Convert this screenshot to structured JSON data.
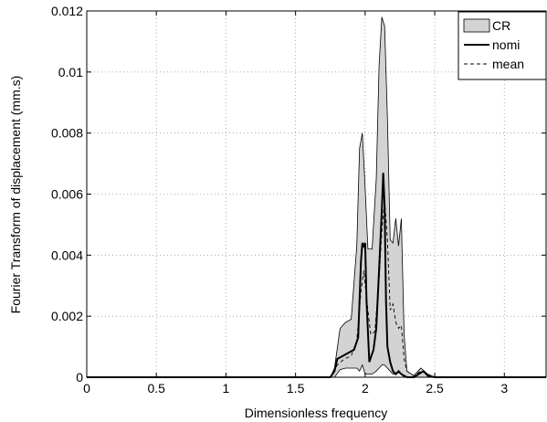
{
  "chart_data": {
    "type": "area",
    "title": "",
    "xlabel": "Dimensionless frequency",
    "ylabel": "Fourier Transform of displacement (mm.s)",
    "xlim": [
      0,
      3.3
    ],
    "ylim": [
      0,
      0.012
    ],
    "grid": true,
    "legend_position": "top-right",
    "x_ticks": [
      0,
      0.5,
      1,
      1.5,
      2,
      2.5,
      3
    ],
    "x_tick_labels": [
      "0",
      "0.5",
      "1",
      "1.5",
      "2",
      "2.5",
      "3"
    ],
    "y_ticks": [
      0,
      0.002,
      0.004,
      0.006,
      0.008,
      0.01,
      0.012
    ],
    "y_tick_labels": [
      "0",
      "0.002",
      "0.004",
      "0.006",
      "0.008",
      "0.01",
      "0.012"
    ],
    "colors": {
      "band_fill": "#d3d3d3",
      "line": "#000000",
      "grid": "#9a9a9a"
    },
    "series": [
      {
        "name": "CR",
        "kind": "band",
        "x": [
          0,
          1.75,
          1.78,
          1.82,
          1.86,
          1.9,
          1.94,
          1.96,
          1.98,
          2.0,
          2.02,
          2.05,
          2.08,
          2.1,
          2.12,
          2.14,
          2.16,
          2.18,
          2.2,
          2.22,
          2.24,
          2.26,
          2.28,
          2.3,
          2.35,
          2.4,
          2.45,
          2.5,
          3.3
        ],
        "upper": [
          0,
          0,
          0.0003,
          0.0016,
          0.0018,
          0.0019,
          0.0043,
          0.0075,
          0.008,
          0.0062,
          0.0042,
          0.0042,
          0.0065,
          0.0102,
          0.0118,
          0.0115,
          0.0085,
          0.0045,
          0.0044,
          0.0052,
          0.0043,
          0.0052,
          0.0014,
          0.0002,
          5e-05,
          0.0003,
          0.0001,
          0,
          0
        ],
        "lower": [
          0,
          0,
          0,
          0.00025,
          0.0003,
          0.0003,
          0.0003,
          0.0002,
          0.0004,
          0.0001,
          0.0001,
          0.0001,
          0.0002,
          0.0003,
          0.0004,
          0.0004,
          0.0003,
          0.0002,
          0.0001,
          0.0001,
          0.00015,
          0.0001,
          0,
          0,
          0,
          0,
          0,
          0,
          0
        ]
      },
      {
        "name": "nomi",
        "kind": "line",
        "style": "solid",
        "x": [
          0,
          1.75,
          1.78,
          1.8,
          1.84,
          1.88,
          1.92,
          1.95,
          1.97,
          1.98,
          1.99,
          2.0,
          2.01,
          2.03,
          2.06,
          2.08,
          2.1,
          2.12,
          2.13,
          2.14,
          2.15,
          2.16,
          2.18,
          2.2,
          2.22,
          2.24,
          2.26,
          2.28,
          2.3,
          2.35,
          2.4,
          2.42,
          2.45,
          2.5,
          3.3
        ],
        "y": [
          0,
          0,
          0.0002,
          0.0006,
          0.0007,
          0.0008,
          0.0009,
          0.0013,
          0.0038,
          0.0044,
          0.0043,
          0.0044,
          0.0025,
          0.0005,
          0.0009,
          0.0016,
          0.0035,
          0.0055,
          0.0067,
          0.0056,
          0.0025,
          0.001,
          0.0005,
          0.0002,
          0.0001,
          0.0002,
          0.0001,
          5e-05,
          0,
          0,
          0.00015,
          0.0002,
          5e-05,
          0,
          0
        ]
      },
      {
        "name": "mean",
        "kind": "line",
        "style": "dashed",
        "x": [
          0,
          1.75,
          1.8,
          1.85,
          1.9,
          1.94,
          1.97,
          1.99,
          2.01,
          2.04,
          2.07,
          2.1,
          2.12,
          2.14,
          2.16,
          2.18,
          2.2,
          2.22,
          2.24,
          2.26,
          2.28,
          2.3,
          2.35,
          2.4,
          2.45,
          2.5,
          3.3
        ],
        "y": [
          0,
          0,
          0.0004,
          0.0006,
          0.0007,
          0.0012,
          0.0028,
          0.0035,
          0.0026,
          0.0014,
          0.0015,
          0.0032,
          0.0048,
          0.0058,
          0.0045,
          0.0022,
          0.0024,
          0.0018,
          0.0016,
          0.0017,
          0.0006,
          0.0002,
          5e-05,
          0.0002,
          0.0001,
          0,
          0
        ]
      }
    ]
  }
}
